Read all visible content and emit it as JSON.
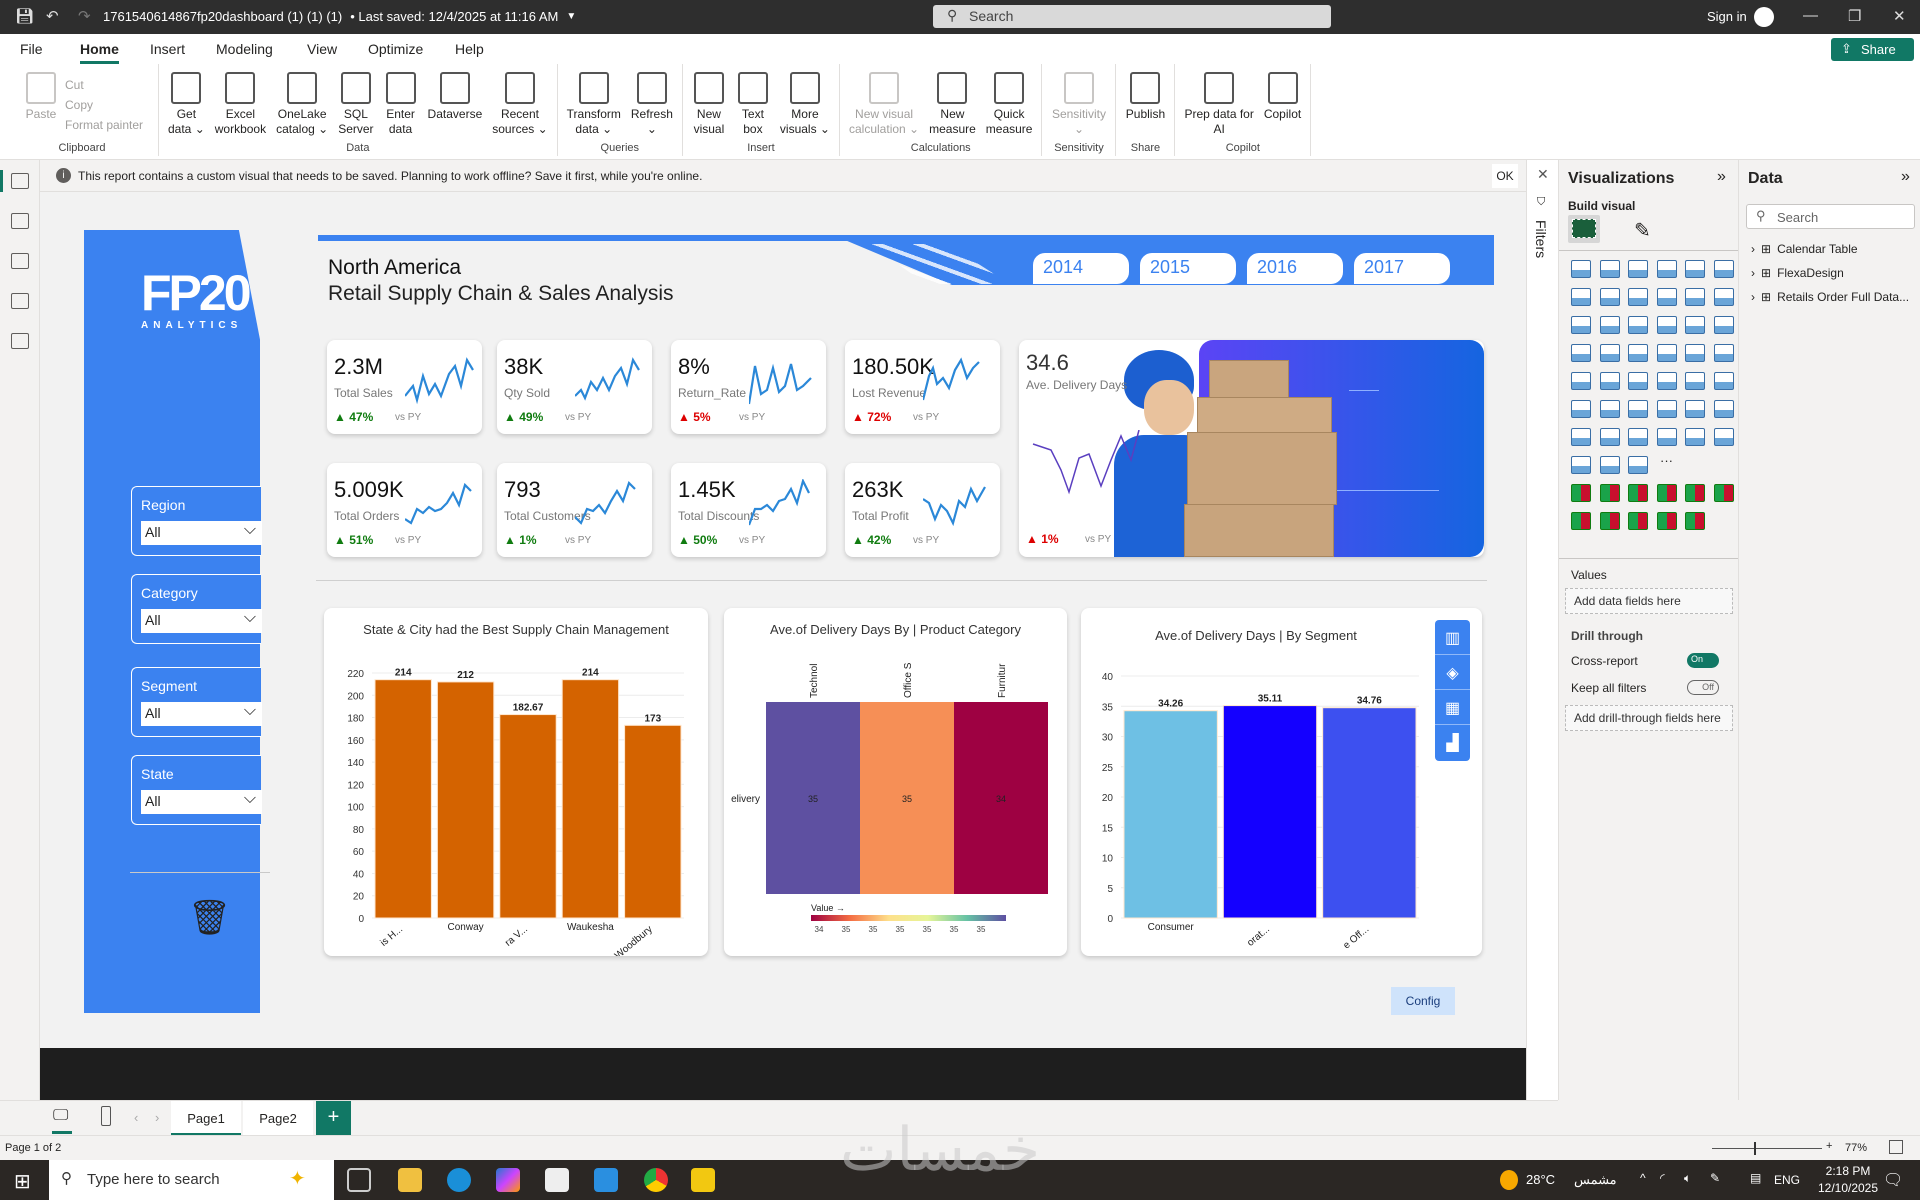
{
  "titlebar": {
    "title": "1761540614867fp20dashboard (1) (1) (1)",
    "saved": "• Last saved: 12/4/2025 at 11:16 AM",
    "search_placeholder": "Search",
    "sign_in": "Sign in"
  },
  "menu": {
    "tabs": [
      "File",
      "Home",
      "Insert",
      "Modeling",
      "View",
      "Optimize",
      "Help"
    ],
    "active": "Home",
    "share": "Share"
  },
  "ribbon": {
    "groups": [
      {
        "label": "Clipboard",
        "small": [
          "Cut",
          "Copy",
          "Format painter"
        ],
        "buttons": [
          {
            "label": "Paste",
            "disabled": true
          }
        ]
      },
      {
        "label": "Data",
        "buttons": [
          {
            "label": "Get\ndata ⌄"
          },
          {
            "label": "Excel\nworkbook"
          },
          {
            "label": "OneLake\ncatalog ⌄"
          },
          {
            "label": "SQL\nServer"
          },
          {
            "label": "Enter\ndata"
          },
          {
            "label": "Dataverse"
          },
          {
            "label": "Recent\nsources ⌄"
          }
        ]
      },
      {
        "label": "Queries",
        "buttons": [
          {
            "label": "Transform\ndata ⌄"
          },
          {
            "label": "Refresh\n⌄"
          }
        ]
      },
      {
        "label": "Insert",
        "buttons": [
          {
            "label": "New\nvisual"
          },
          {
            "label": "Text\nbox"
          },
          {
            "label": "More\nvisuals ⌄"
          }
        ]
      },
      {
        "label": "Calculations",
        "buttons": [
          {
            "label": "New visual\ncalculation ⌄",
            "disabled": true
          },
          {
            "label": "New\nmeasure"
          },
          {
            "label": "Quick\nmeasure"
          }
        ]
      },
      {
        "label": "Sensitivity",
        "buttons": [
          {
            "label": "Sensitivity\n⌄",
            "disabled": true
          }
        ]
      },
      {
        "label": "Share",
        "buttons": [
          {
            "label": "Publish"
          }
        ]
      },
      {
        "label": "Copilot",
        "buttons": [
          {
            "label": "Prep data for\nAI"
          },
          {
            "label": "Copilot"
          }
        ]
      }
    ]
  },
  "infobar": {
    "message": "This report contains a custom visual that needs to be saved. Planning to work offline? Save it first, while you're online.",
    "ok": "OK"
  },
  "report": {
    "logo_text": "FP20",
    "logo_sub": "ANALYTICS",
    "region_title": "North America",
    "subtitle": "Retail Supply Chain & Sales Analysis",
    "years": [
      "2014",
      "2015",
      "2016",
      "2017"
    ],
    "slicers": [
      {
        "label": "Region",
        "value": "All"
      },
      {
        "label": "Category",
        "value": "All"
      },
      {
        "label": "Segment",
        "value": "All"
      },
      {
        "label": "State",
        "value": "All"
      }
    ],
    "kpis": [
      {
        "value": "2.3M",
        "label": "Total Sales",
        "change": "47%",
        "trend": "up",
        "good": true
      },
      {
        "value": "38K",
        "label": "Qty Sold",
        "change": "49%",
        "trend": "up",
        "good": true
      },
      {
        "value": "8%",
        "label": "Return_Rate",
        "change": "5%",
        "trend": "up",
        "good": false
      },
      {
        "value": "180.50K",
        "label": "Lost Revenue",
        "change": "72%",
        "trend": "up",
        "good": false
      },
      {
        "value": "5.009K",
        "label": "Total Orders",
        "change": "51%",
        "trend": "up",
        "good": true
      },
      {
        "value": "793",
        "label": "Total Customers",
        "change": "1%",
        "trend": "up",
        "good": true
      },
      {
        "value": "1.45K",
        "label": "Total Discounts",
        "change": "50%",
        "trend": "up",
        "good": true
      },
      {
        "value": "263K",
        "label": "Total Profit",
        "change": "42%",
        "trend": "up",
        "good": true
      }
    ],
    "vs_py": "vs PY",
    "delivery_kpi": {
      "value": "34.6",
      "label": "Ave. Delivery Days",
      "change": "1%",
      "good": false
    },
    "config": "Config"
  },
  "chart_data": [
    {
      "type": "bar",
      "title": "State & City had the Best Supply Chain Management",
      "categories": [
        "is H...",
        "Conway",
        "ra V...",
        "Waukesha",
        "Woodbury"
      ],
      "values": [
        214,
        212,
        182.67,
        214,
        173
      ],
      "labels": [
        "214",
        "212",
        "182.67",
        "214",
        "173"
      ],
      "ylim": [
        0,
        220
      ],
      "yticks": [
        0,
        20,
        40,
        60,
        80,
        100,
        120,
        140,
        160,
        180,
        200,
        220
      ],
      "color": "#d46300",
      "grid": true
    },
    {
      "type": "heatmap",
      "title": "Ave.of Delivery Days By | Product Category",
      "x": [
        "Technol",
        "Office S",
        "Furnitur"
      ],
      "y": [
        "elivery"
      ],
      "values": [
        [
          35,
          35,
          34
        ]
      ],
      "colors": [
        "#5e50a1",
        "#f68f56",
        "#9e0142"
      ],
      "legend_title": "Value →",
      "legend_ticks": [
        "34",
        "35",
        "35",
        "35",
        "35",
        "35",
        "35"
      ],
      "legend_placement": "bottom"
    },
    {
      "type": "bar",
      "title": "Ave.of Delivery Days | By Segment",
      "categories": [
        "Consumer",
        "orat...",
        "e Off..."
      ],
      "values": [
        34.26,
        35.11,
        34.76
      ],
      "labels": [
        "34.26",
        "35.11",
        "34.76"
      ],
      "ylim": [
        0,
        40
      ],
      "yticks": [
        0,
        5,
        10,
        15,
        20,
        25,
        30,
        35,
        40
      ],
      "colors": [
        "#6ec0e4",
        "#1400ff",
        "#3d50f0"
      ],
      "grid": true
    }
  ],
  "panes": {
    "filters": "Filters",
    "visualizations": "Visualizations",
    "build_visual": "Build visual",
    "viz_icons": [
      "stacked-bar",
      "stacked-column",
      "clustered-bar",
      "clustered-column",
      "100-bar",
      "100-column",
      "line",
      "area",
      "stacked-area",
      "100-area",
      "line-column",
      "line-clustered",
      "ribbon",
      "waterfall",
      "funnel",
      "scatter",
      "pie",
      "donut",
      "treemap",
      "map",
      "filled-map",
      "azure-map",
      "gauge",
      "card-new",
      "card",
      "multi-row-card",
      "kpi",
      "slicer",
      "table",
      "matrix",
      "r-visual",
      "python-visual",
      "key-influencers",
      "decomposition-tree",
      "qa",
      "paginated",
      "metrics",
      "narrative",
      "slicer-new",
      "button-slicer",
      "list-slicer",
      "image",
      "arcgis",
      "power-apps",
      "power-automate",
      "more"
    ],
    "custom_icons": [
      "custom-1",
      "custom-2",
      "custom-3",
      "custom-4",
      "custom-5",
      "custom-6",
      "custom-7",
      "custom-8",
      "custom-9",
      "custom-10",
      "custom-11"
    ],
    "values": "Values",
    "add_data_fields": "Add data fields here",
    "drill_through": "Drill through",
    "cross_report": "Cross-report",
    "cross_report_state": "On",
    "keep_filters": "Keep all filters",
    "keep_filters_state": "Off",
    "add_drill": "Add drill-through fields here",
    "data": "Data",
    "data_search": "Search",
    "tables": [
      "Calendar Table",
      "FlexaDesign",
      "Retails Order Full Data..."
    ]
  },
  "pages": {
    "tabs": [
      "Page1",
      "Page2"
    ],
    "active": "Page1",
    "status": "Page 1 of 2",
    "zoom": "77%"
  },
  "taskbar": {
    "search": "Type here to search",
    "temp": "28°C",
    "weather": "مشمس",
    "lang": "ENG",
    "time": "2:18 PM",
    "date": "12/10/2025",
    "watermark": "خمسات"
  }
}
